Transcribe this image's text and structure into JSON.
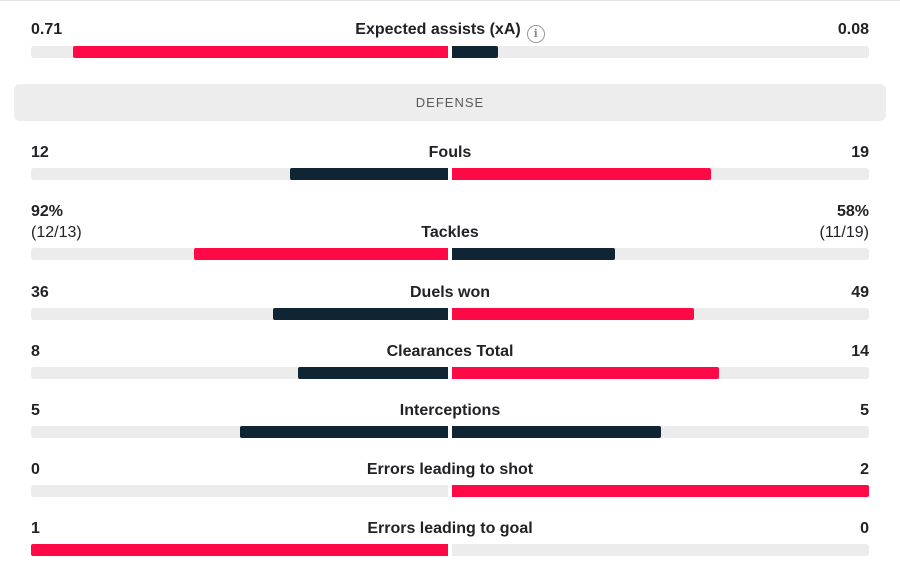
{
  "colors": {
    "primary": "#ff0a47",
    "dark": "#0f2533",
    "track": "#ececec"
  },
  "top_stat": {
    "title": "Expected assists (xA)",
    "info_icon": "info-icon",
    "left": "0.71",
    "right": "0.08",
    "left_fill": 0.9,
    "right_fill": 0.11,
    "left_color": "primary",
    "right_color": "dark"
  },
  "section": {
    "label": "DEFENSE"
  },
  "stats": [
    {
      "title": "Fouls",
      "left": "12",
      "right": "19",
      "left_fill": 0.38,
      "right_fill": 0.62,
      "left_color": "dark",
      "right_color": "primary"
    },
    {
      "title": "Tackles",
      "left": "92%",
      "left_sub": "(12/13)",
      "right": "58%",
      "right_sub": "(11/19)",
      "left_fill": 0.61,
      "right_fill": 0.39,
      "left_color": "primary",
      "right_color": "dark"
    },
    {
      "title": "Duels won",
      "left": "36",
      "right": "49",
      "left_fill": 0.42,
      "right_fill": 0.58,
      "left_color": "dark",
      "right_color": "primary"
    },
    {
      "title": "Clearances Total",
      "left": "8",
      "right": "14",
      "left_fill": 0.36,
      "right_fill": 0.64,
      "left_color": "dark",
      "right_color": "primary"
    },
    {
      "title": "Interceptions",
      "left": "5",
      "right": "5",
      "left_fill": 0.5,
      "right_fill": 0.5,
      "left_color": "dark",
      "right_color": "dark"
    },
    {
      "title": "Errors leading to shot",
      "left": "0",
      "right": "2",
      "left_fill": 0,
      "right_fill": 1,
      "left_color": "dark",
      "right_color": "primary"
    },
    {
      "title": "Errors leading to goal",
      "left": "1",
      "right": "0",
      "left_fill": 1,
      "right_fill": 0,
      "left_color": "primary",
      "right_color": "dark"
    }
  ]
}
